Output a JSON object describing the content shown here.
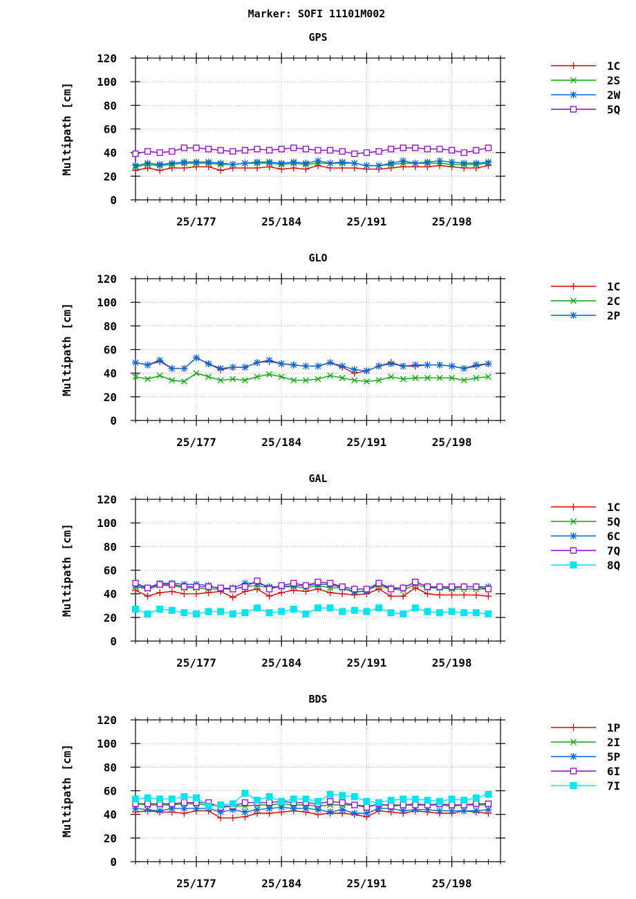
{
  "title": "Marker: SOFI 11101M002",
  "chart_data": [
    {
      "type": "line",
      "title": "GPS",
      "ylabel": "Multipath [cm]",
      "ylim": [
        0,
        120
      ],
      "yticks": [
        0,
        20,
        40,
        60,
        80,
        100,
        120
      ],
      "xlim": [
        172,
        202
      ],
      "xticks": [
        {
          "x": 177,
          "label": "25/177"
        },
        {
          "x": 184,
          "label": "25/184"
        },
        {
          "x": 191,
          "label": "25/191"
        },
        {
          "x": 198,
          "label": "25/198"
        }
      ],
      "grid": true,
      "legend_position": "right",
      "x": [
        172,
        173,
        174,
        175,
        176,
        177,
        178,
        179,
        180,
        181,
        182,
        183,
        184,
        185,
        186,
        187,
        188,
        189,
        190,
        191,
        192,
        193,
        194,
        195,
        196,
        197,
        198,
        199,
        200,
        201
      ],
      "series": [
        {
          "name": "1C",
          "color": "#dd0000",
          "marker": "plus",
          "values": [
            25,
            27,
            25,
            27,
            27,
            28,
            28,
            25,
            27,
            27,
            27,
            28,
            26,
            27,
            26,
            29,
            27,
            27,
            27,
            26,
            26,
            27,
            28,
            28,
            28,
            29,
            28,
            27,
            27,
            29
          ]
        },
        {
          "name": "2S",
          "color": "#00aa00",
          "marker": "cross",
          "values": [
            28,
            30,
            29,
            30,
            31,
            31,
            31,
            30,
            30,
            31,
            31,
            31,
            30,
            31,
            30,
            31,
            31,
            31,
            31,
            29,
            29,
            30,
            31,
            31,
            31,
            31,
            30,
            30,
            30,
            31
          ]
        },
        {
          "name": "2W",
          "color": "#0066dd",
          "marker": "star",
          "values": [
            29,
            31,
            30,
            31,
            32,
            32,
            32,
            31,
            30,
            31,
            32,
            32,
            31,
            32,
            31,
            33,
            31,
            32,
            31,
            29,
            29,
            31,
            33,
            31,
            32,
            33,
            32,
            31,
            31,
            32
          ]
        },
        {
          "name": "5Q",
          "color": "#9400d3",
          "marker": "square",
          "values": [
            39,
            41,
            40,
            41,
            44,
            44,
            43,
            42,
            41,
            42,
            43,
            42,
            43,
            44,
            43,
            42,
            42,
            41,
            39,
            40,
            41,
            43,
            44,
            44,
            43,
            43,
            42,
            40,
            42,
            44
          ]
        }
      ]
    },
    {
      "type": "line",
      "title": "GLO",
      "ylabel": "Multipath [cm]",
      "ylim": [
        0,
        120
      ],
      "yticks": [
        0,
        20,
        40,
        60,
        80,
        100,
        120
      ],
      "xlim": [
        172,
        202
      ],
      "xticks": [
        {
          "x": 177,
          "label": "25/177"
        },
        {
          "x": 184,
          "label": "25/184"
        },
        {
          "x": 191,
          "label": "25/191"
        },
        {
          "x": 198,
          "label": "25/198"
        }
      ],
      "grid": true,
      "legend_position": "right",
      "x": [
        172,
        173,
        174,
        175,
        176,
        177,
        178,
        179,
        180,
        181,
        182,
        183,
        184,
        185,
        186,
        187,
        188,
        189,
        190,
        191,
        192,
        193,
        194,
        195,
        196,
        197,
        198,
        199,
        200,
        201
      ],
      "series": [
        {
          "name": "1C",
          "color": "#dd0000",
          "marker": "plus",
          "values": [
            49,
            47,
            50,
            44,
            44,
            53,
            48,
            43,
            45,
            45,
            49,
            50,
            48,
            47,
            46,
            46,
            49,
            45,
            40,
            42,
            46,
            49,
            46,
            46,
            47,
            47,
            46,
            44,
            46,
            48
          ]
        },
        {
          "name": "2C",
          "color": "#00aa00",
          "marker": "cross",
          "values": [
            37,
            35,
            38,
            34,
            33,
            40,
            37,
            34,
            35,
            34,
            37,
            39,
            37,
            34,
            34,
            35,
            38,
            36,
            34,
            33,
            34,
            37,
            35,
            36,
            36,
            36,
            36,
            34,
            36,
            37
          ]
        },
        {
          "name": "2P",
          "color": "#0066dd",
          "marker": "star",
          "values": [
            49,
            47,
            51,
            44,
            44,
            53,
            48,
            44,
            45,
            45,
            49,
            51,
            48,
            47,
            46,
            46,
            49,
            46,
            43,
            42,
            46,
            48,
            46,
            47,
            47,
            47,
            46,
            44,
            47,
            48
          ]
        }
      ]
    },
    {
      "type": "line",
      "title": "GAL",
      "ylabel": "Multipath [cm]",
      "ylim": [
        0,
        120
      ],
      "yticks": [
        0,
        20,
        40,
        60,
        80,
        100,
        120
      ],
      "xlim": [
        172,
        202
      ],
      "xticks": [
        {
          "x": 177,
          "label": "25/177"
        },
        {
          "x": 184,
          "label": "25/184"
        },
        {
          "x": 191,
          "label": "25/191"
        },
        {
          "x": 198,
          "label": "25/198"
        }
      ],
      "grid": true,
      "legend_position": "right",
      "x": [
        172,
        173,
        174,
        175,
        176,
        177,
        178,
        179,
        180,
        181,
        182,
        183,
        184,
        185,
        186,
        187,
        188,
        189,
        190,
        191,
        192,
        193,
        194,
        195,
        196,
        197,
        198,
        199,
        200,
        201
      ],
      "series": [
        {
          "name": "1C",
          "color": "#dd0000",
          "marker": "plus",
          "values": [
            43,
            38,
            41,
            42,
            40,
            40,
            41,
            42,
            37,
            42,
            44,
            38,
            41,
            43,
            42,
            44,
            41,
            40,
            39,
            40,
            44,
            38,
            38,
            45,
            40,
            39,
            39,
            39,
            39,
            38
          ]
        },
        {
          "name": "5Q",
          "color": "#00aa00",
          "marker": "cross",
          "values": [
            46,
            44,
            47,
            47,
            45,
            45,
            44,
            44,
            44,
            46,
            47,
            45,
            46,
            46,
            45,
            47,
            45,
            45,
            41,
            43,
            47,
            44,
            43,
            48,
            45,
            45,
            44,
            44,
            44,
            44
          ]
        },
        {
          "name": "6C",
          "color": "#0066dd",
          "marker": "star",
          "values": [
            47,
            45,
            49,
            49,
            48,
            48,
            47,
            44,
            45,
            49,
            49,
            46,
            46,
            47,
            47,
            48,
            48,
            45,
            42,
            42,
            49,
            45,
            45,
            50,
            46,
            45,
            45,
            46,
            46,
            46
          ]
        },
        {
          "name": "7Q",
          "color": "#9400d3",
          "marker": "square",
          "values": [
            49,
            45,
            48,
            48,
            46,
            46,
            46,
            45,
            44,
            46,
            51,
            44,
            47,
            49,
            47,
            50,
            49,
            46,
            44,
            44,
            49,
            44,
            45,
            50,
            46,
            46,
            46,
            46,
            46,
            44
          ]
        },
        {
          "name": "8Q",
          "color": "#00e5ee",
          "marker": "filled-square",
          "values": [
            27,
            23,
            27,
            26,
            24,
            23,
            25,
            25,
            23,
            24,
            28,
            24,
            25,
            27,
            23,
            28,
            28,
            25,
            26,
            25,
            28,
            24,
            23,
            28,
            25,
            24,
            25,
            24,
            24,
            23
          ]
        }
      ]
    },
    {
      "type": "line",
      "title": "BDS",
      "ylabel": "Multipath [cm]",
      "ylim": [
        0,
        120
      ],
      "yticks": [
        0,
        20,
        40,
        60,
        80,
        100,
        120
      ],
      "xlim": [
        172,
        202
      ],
      "xticks": [
        {
          "x": 177,
          "label": "25/177"
        },
        {
          "x": 184,
          "label": "25/184"
        },
        {
          "x": 191,
          "label": "25/191"
        },
        {
          "x": 198,
          "label": "25/198"
        }
      ],
      "grid": true,
      "legend_position": "right",
      "x": [
        172,
        173,
        174,
        175,
        176,
        177,
        178,
        179,
        180,
        181,
        182,
        183,
        184,
        185,
        186,
        187,
        188,
        189,
        190,
        191,
        192,
        193,
        194,
        195,
        196,
        197,
        198,
        199,
        200,
        201
      ],
      "series": [
        {
          "name": "1P",
          "color": "#dd0000",
          "marker": "plus",
          "values": [
            42,
            43,
            42,
            42,
            41,
            43,
            43,
            37,
            37,
            38,
            41,
            41,
            42,
            43,
            42,
            40,
            41,
            41,
            40,
            38,
            43,
            42,
            41,
            43,
            42,
            41,
            41,
            43,
            42,
            41
          ]
        },
        {
          "name": "2I",
          "color": "#00aa00",
          "marker": "cross",
          "values": [
            49,
            48,
            48,
            48,
            49,
            49,
            48,
            47,
            47,
            47,
            48,
            48,
            49,
            48,
            48,
            47,
            48,
            48,
            48,
            47,
            48,
            48,
            48,
            49,
            48,
            48,
            47,
            48,
            48,
            48
          ]
        },
        {
          "name": "5P",
          "color": "#0066dd",
          "marker": "star",
          "values": [
            45,
            44,
            43,
            45,
            45,
            45,
            45,
            42,
            44,
            42,
            44,
            45,
            46,
            45,
            45,
            44,
            42,
            44,
            41,
            41,
            45,
            45,
            43,
            44,
            44,
            43,
            43,
            43,
            43,
            44
          ]
        },
        {
          "name": "6I",
          "color": "#9400d3",
          "marker": "square",
          "values": [
            49,
            49,
            49,
            49,
            50,
            50,
            50,
            46,
            47,
            50,
            50,
            50,
            51,
            50,
            50,
            49,
            51,
            50,
            48,
            46,
            49,
            47,
            48,
            48,
            48,
            49,
            48,
            48,
            49,
            49
          ]
        },
        {
          "name": "7I",
          "color": "#00e5ee",
          "marker": "filled-square",
          "values": [
            53,
            54,
            53,
            53,
            55,
            54,
            47,
            48,
            49,
            58,
            52,
            55,
            51,
            53,
            53,
            51,
            57,
            56,
            55,
            51,
            50,
            52,
            53,
            53,
            52,
            51,
            53,
            52,
            54,
            57
          ]
        }
      ]
    }
  ]
}
